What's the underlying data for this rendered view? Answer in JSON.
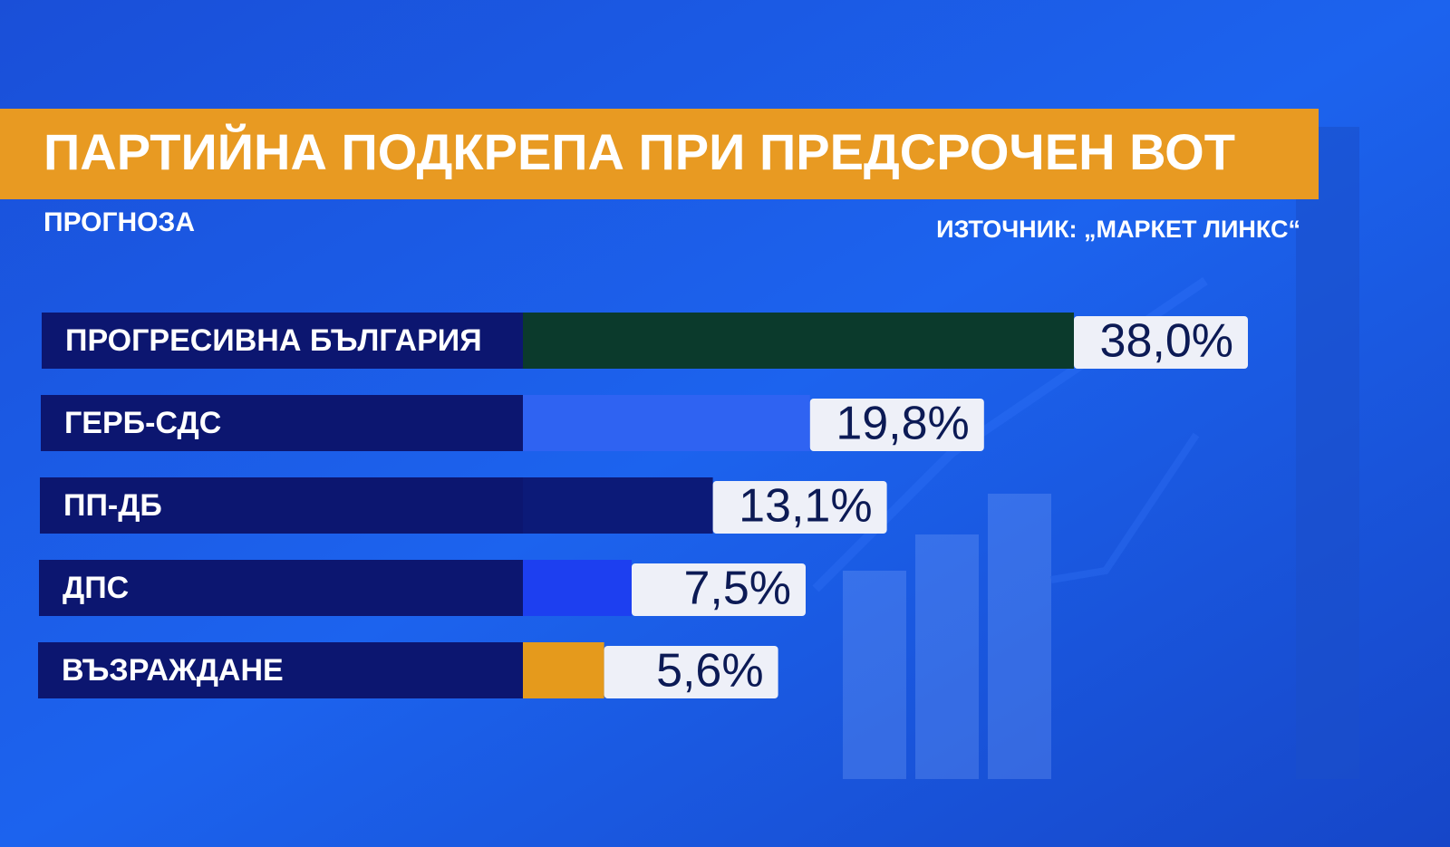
{
  "chart_data": {
    "type": "bar",
    "title": "ПАРТИЙНА ПОДКРЕПА ПРИ ПРЕДСРОЧЕН ВОТ",
    "subtitle": "ПРОГНОЗА",
    "source": "ИЗТОЧНИК: „МАРКЕТ ЛИНКС“",
    "categories": [
      "ПРОГРЕСИВНА БЪЛГАРИЯ",
      "ГЕРБ-СДС",
      "ПП-ДБ",
      "ДПС",
      "ВЪЗРАЖДАНЕ"
    ],
    "values": [
      38.0,
      19.8,
      13.1,
      7.5,
      5.6
    ],
    "value_labels": [
      "38,0%",
      "19,8%",
      "13,1%",
      "7,5%",
      "5,6%"
    ],
    "colors": [
      "#0b3a2c",
      "#2f63f2",
      "#0c1a78",
      "#1d3ff0",
      "#e59a1c"
    ]
  }
}
